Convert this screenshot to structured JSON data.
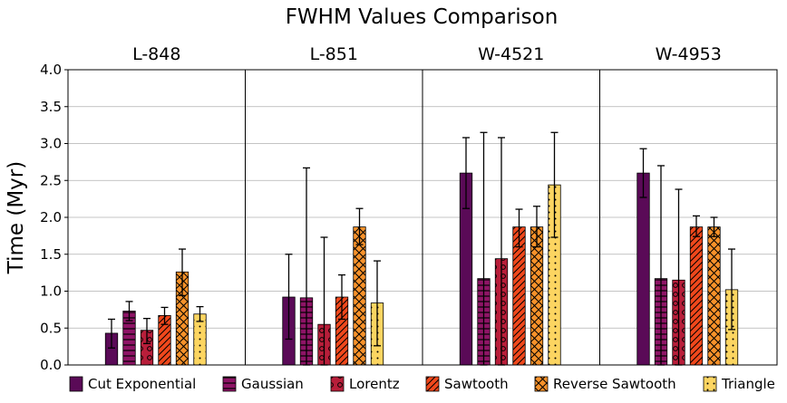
{
  "chart_data": {
    "type": "bar",
    "title": "FWHM Values Comparison",
    "ylabel": "Time (Myr)",
    "xlabel": "",
    "ylim": [
      0,
      4.0
    ],
    "yticks": [
      "0.0",
      "0.5",
      "1.0",
      "1.5",
      "2.0",
      "2.5",
      "3.0",
      "3.5",
      "4.0"
    ],
    "grid": "horizontal",
    "legend_position": "bottom",
    "groups": [
      "L-848",
      "L-851",
      "W-4521",
      "W-4953"
    ],
    "series": [
      {
        "name": "Cut Exponential",
        "color": "#5a0a57",
        "pattern": "none",
        "values": [
          0.43,
          0.92,
          2.6,
          2.6
        ],
        "err_low": [
          0.23,
          0.35,
          2.12,
          2.27
        ],
        "err_high": [
          0.62,
          1.5,
          3.08,
          2.93
        ]
      },
      {
        "name": "Gaussian",
        "color": "#8e1466",
        "pattern": "horizontal-lines",
        "values": [
          0.73,
          0.91,
          1.17,
          1.17
        ],
        "err_low": [
          0.6,
          0.0,
          0.0,
          0.0
        ],
        "err_high": [
          0.86,
          2.67,
          3.15,
          2.7
        ]
      },
      {
        "name": "Lorentz",
        "color": "#b81e3a",
        "pattern": "circles",
        "values": [
          0.47,
          0.55,
          1.44,
          1.15
        ],
        "err_low": [
          0.29,
          0.0,
          0.0,
          0.0
        ],
        "err_high": [
          0.63,
          1.73,
          3.08,
          2.38
        ]
      },
      {
        "name": "Sawtooth",
        "color": "#f0481c",
        "pattern": "diagonal",
        "values": [
          0.67,
          0.92,
          1.87,
          1.87
        ],
        "err_low": [
          0.55,
          0.62,
          1.6,
          1.74
        ],
        "err_high": [
          0.78,
          1.22,
          2.11,
          2.02
        ]
      },
      {
        "name": "Reverse Sawtooth",
        "color": "#f7922a",
        "pattern": "crosshatch",
        "values": [
          1.26,
          1.87,
          1.87,
          1.87
        ],
        "err_low": [
          0.94,
          1.63,
          1.6,
          1.74
        ],
        "err_high": [
          1.57,
          2.12,
          2.15,
          2.0
        ]
      },
      {
        "name": "Triangle",
        "color": "#fcd561",
        "pattern": "dots",
        "values": [
          0.69,
          0.84,
          2.44,
          1.02
        ],
        "err_low": [
          0.59,
          0.26,
          1.73,
          0.48
        ],
        "err_high": [
          0.79,
          1.41,
          3.15,
          1.57
        ]
      }
    ]
  }
}
